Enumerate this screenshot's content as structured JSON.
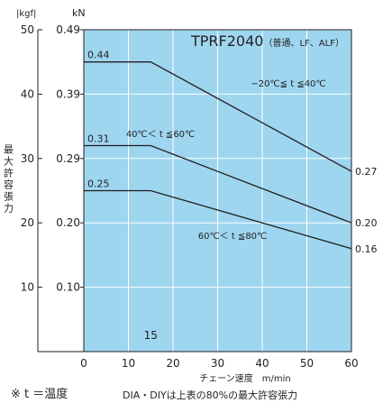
{
  "chart_data": {
    "type": "line",
    "title": "TPRF2040",
    "title_note": "（普通、LF、ALF）",
    "xlabel": "チェーン速度",
    "xunit": "m/min",
    "ylabel": "最大許容張力",
    "y_unit_left": "|kgf|",
    "y_unit_right": "kN",
    "xlim": [
      0,
      60
    ],
    "ylim": [
      0,
      50
    ],
    "x_ticks": [
      0,
      10,
      20,
      30,
      40,
      50,
      60
    ],
    "y_ticks": [
      10,
      20,
      30,
      40,
      50
    ],
    "y_kn_ticks": [
      "0.10",
      "0.20",
      "0.29",
      "0.39",
      "0.49"
    ],
    "x_marker": "15",
    "grid": true,
    "background_color": "#9ed6f0",
    "grid_color": "#ffffff",
    "line_color": "#231f20",
    "series": [
      {
        "name": "−20℃≦ t ≦40℃",
        "x": [
          0,
          15,
          60
        ],
        "y": [
          45,
          45,
          28
        ],
        "start_label": "0.44",
        "end_label": "0.27"
      },
      {
        "name": "40℃＜ t ≦60℃",
        "x": [
          0,
          15,
          60
        ],
        "y": [
          32,
          32,
          20
        ],
        "start_label": "0.31",
        "end_label": "0.20"
      },
      {
        "name": "60℃＜ t ≦80℃",
        "x": [
          0,
          15,
          60
        ],
        "y": [
          25,
          25,
          16
        ],
        "start_label": "0.25",
        "end_label": "0.16"
      }
    ]
  },
  "footer": {
    "temperature_note": "※ t ＝温度",
    "ratio_note": "DIA・DIYは上表の80%の最大許容張力"
  }
}
